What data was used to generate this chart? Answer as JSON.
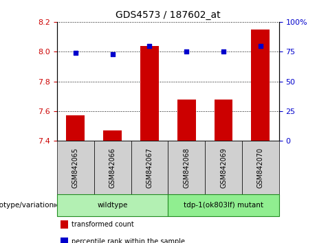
{
  "title": "GDS4573 / 187602_at",
  "samples": [
    "GSM842065",
    "GSM842066",
    "GSM842067",
    "GSM842068",
    "GSM842069",
    "GSM842070"
  ],
  "bar_values": [
    7.57,
    7.47,
    8.04,
    7.68,
    7.68,
    8.15
  ],
  "bar_base": 7.4,
  "bar_color": "#cc0000",
  "percentile_values": [
    74,
    73,
    80,
    75,
    75,
    80
  ],
  "dot_color": "#0000cc",
  "ylim_left": [
    7.4,
    8.2
  ],
  "ylim_right": [
    0,
    100
  ],
  "yticks_left": [
    7.4,
    7.6,
    7.8,
    8.0,
    8.2
  ],
  "yticks_right": [
    0,
    25,
    50,
    75,
    100
  ],
  "ytick_labels_right": [
    "0",
    "25",
    "50",
    "75",
    "100%"
  ],
  "groups": [
    {
      "label": "wildtype",
      "indices": [
        0,
        1,
        2
      ],
      "color": "#b3f0b3"
    },
    {
      "label": "tdp-1(ok803lf) mutant",
      "indices": [
        3,
        4,
        5
      ],
      "color": "#90ee90"
    }
  ],
  "legend_items": [
    {
      "label": "transformed count",
      "color": "#cc0000"
    },
    {
      "label": "percentile rank within the sample",
      "color": "#0000cc"
    }
  ],
  "xlabel_area": "genotype/variation",
  "background_plot": "#ffffff",
  "sample_cell_color": "#d0d0d0",
  "tick_color_left": "#cc0000",
  "tick_color_right": "#0000cc",
  "figsize": [
    4.61,
    3.54
  ],
  "dpi": 100
}
